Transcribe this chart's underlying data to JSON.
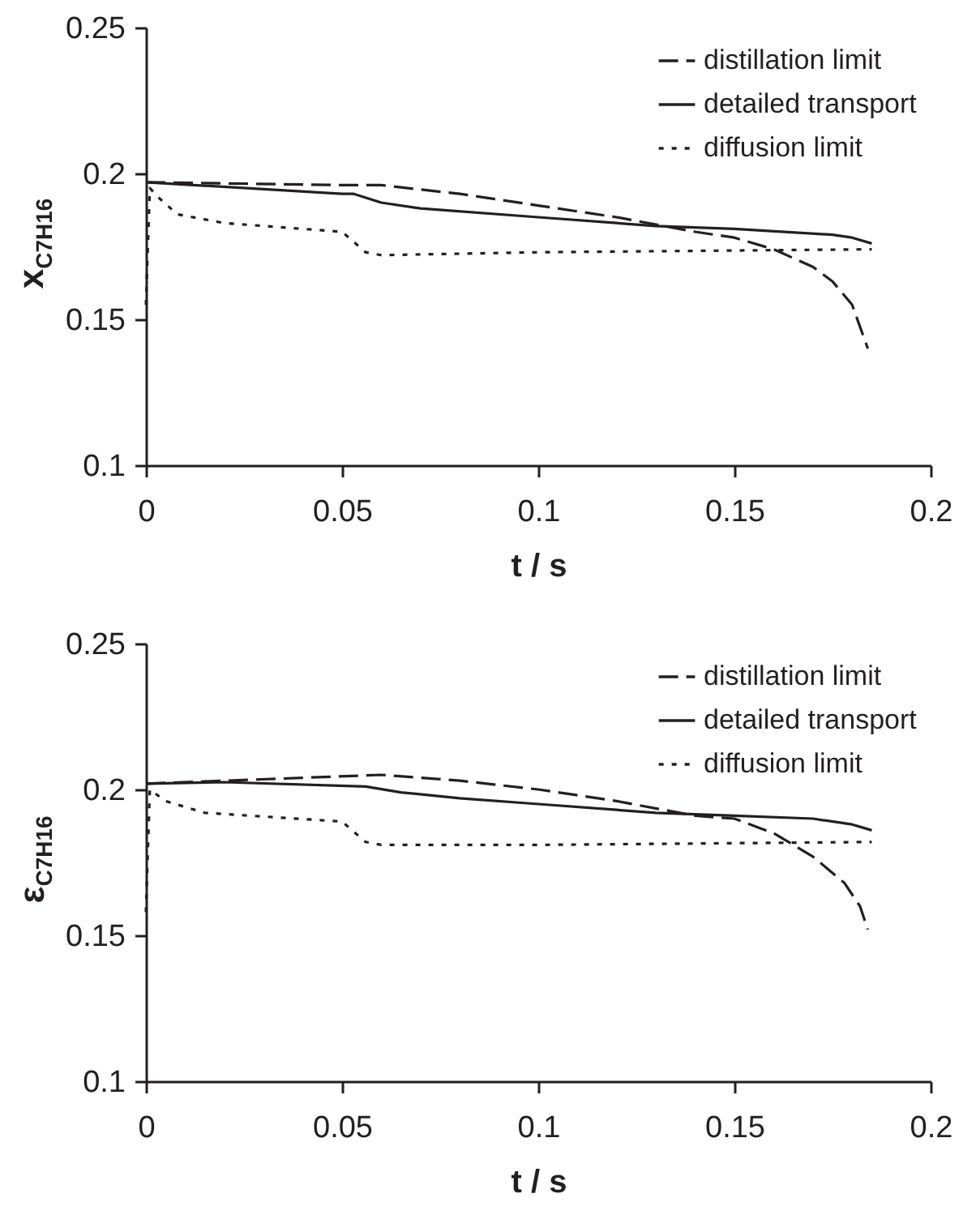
{
  "chart_data": [
    {
      "type": "line",
      "xlabel": "t / s",
      "ylabel": "x$_{C7H16}$",
      "xlim": [
        0,
        0.2
      ],
      "xticks": [
        0,
        0.05,
        0.1,
        0.15,
        0.2
      ],
      "ylim": [
        0.1,
        0.25
      ],
      "yticks": [
        0.1,
        0.15,
        0.2,
        0.25
      ],
      "grid": false,
      "legend": "top right",
      "marker": "none",
      "series": [
        {
          "name": "distillation limit",
          "color": "#231f20",
          "line_style": "dashed",
          "x": [
            0,
            0.05,
            0.06,
            0.08,
            0.1,
            0.12,
            0.14,
            0.15,
            0.16,
            0.17,
            0.175,
            0.18,
            0.184
          ],
          "values": [
            0.197,
            0.196,
            0.196,
            0.193,
            0.189,
            0.185,
            0.18,
            0.178,
            0.174,
            0.168,
            0.163,
            0.155,
            0.14
          ]
        },
        {
          "name": "detailed transport",
          "color": "#231f20",
          "line_style": "solid",
          "x": [
            0,
            0.05,
            0.053,
            0.06,
            0.07,
            0.1,
            0.13,
            0.15,
            0.175,
            0.18,
            0.185
          ],
          "values": [
            0.197,
            0.193,
            0.193,
            0.19,
            0.188,
            0.185,
            0.182,
            0.181,
            0.179,
            0.178,
            0.176
          ]
        },
        {
          "name": "diffusion limit",
          "color": "#231f20",
          "line_style": "dotted",
          "x": [
            0,
            0.001,
            0.003,
            0.008,
            0.02,
            0.05,
            0.056,
            0.06,
            0.1,
            0.185
          ],
          "values": [
            0.155,
            0.195,
            0.192,
            0.186,
            0.183,
            0.18,
            0.173,
            0.172,
            0.173,
            0.174
          ]
        }
      ]
    },
    {
      "type": "line",
      "xlabel": "t / s",
      "ylabel": "ε$_{C7H16}$",
      "xlim": [
        0,
        0.2
      ],
      "xticks": [
        0,
        0.05,
        0.1,
        0.15,
        0.2
      ],
      "ylim": [
        0.1,
        0.25
      ],
      "yticks": [
        0.1,
        0.15,
        0.2,
        0.25
      ],
      "grid": false,
      "legend": "top right",
      "marker": "none",
      "series": [
        {
          "name": "distillation limit",
          "color": "#231f20",
          "line_style": "dashed",
          "x": [
            0,
            0.02,
            0.04,
            0.06,
            0.08,
            0.1,
            0.12,
            0.14,
            0.15,
            0.16,
            0.17,
            0.178,
            0.182,
            0.184
          ],
          "values": [
            0.202,
            0.203,
            0.204,
            0.205,
            0.203,
            0.2,
            0.196,
            0.191,
            0.19,
            0.185,
            0.177,
            0.168,
            0.16,
            0.152
          ]
        },
        {
          "name": "detailed transport",
          "color": "#231f20",
          "line_style": "solid",
          "x": [
            0,
            0.02,
            0.056,
            0.065,
            0.08,
            0.1,
            0.13,
            0.15,
            0.17,
            0.18,
            0.185
          ],
          "values": [
            0.202,
            0.2025,
            0.201,
            0.199,
            0.197,
            0.195,
            0.192,
            0.191,
            0.19,
            0.188,
            0.186
          ]
        },
        {
          "name": "diffusion limit",
          "color": "#231f20",
          "line_style": "dotted",
          "x": [
            0,
            0.001,
            0.005,
            0.015,
            0.05,
            0.056,
            0.06,
            0.1,
            0.185
          ],
          "values": [
            0.158,
            0.2,
            0.196,
            0.192,
            0.189,
            0.182,
            0.181,
            0.181,
            0.182
          ]
        }
      ]
    }
  ]
}
